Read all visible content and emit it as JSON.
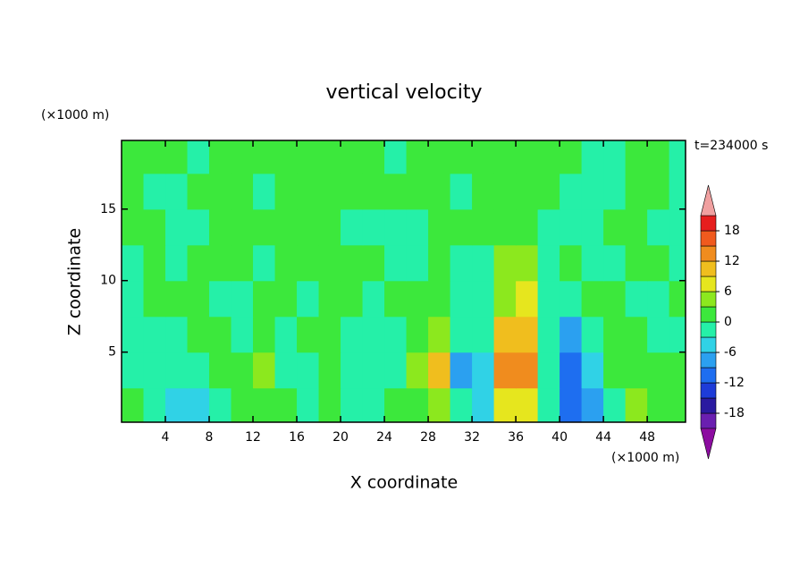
{
  "chart_data": {
    "type": "contour",
    "title": "vertical velocity",
    "y_unit": "(×1000 m)",
    "x_unit": "(×1000 m)",
    "time_label": "t=234000 s",
    "x_label": "X coordinate",
    "y_label": "Z coordinate",
    "xlim": [
      0,
      51.5
    ],
    "ylim": [
      0.1,
      19.8
    ],
    "xticks": [
      4,
      8,
      12,
      16,
      20,
      24,
      28,
      32,
      36,
      40,
      44,
      48
    ],
    "yticks": [
      5,
      10,
      15
    ],
    "xbins": [
      0,
      2,
      4,
      6,
      8,
      10,
      12,
      14,
      16,
      18,
      20,
      22,
      24,
      26,
      28,
      30,
      32,
      34,
      36,
      38,
      40,
      42,
      44,
      46,
      48,
      50,
      52
    ],
    "ybins": [
      0,
      2.5,
      5,
      7.5,
      10,
      12.5,
      15,
      17.5,
      20
    ],
    "z": [
      [
        1.5,
        -1.5,
        -4,
        -4,
        -1.5,
        1.5,
        1.5,
        1.5,
        -1.5,
        1.5,
        -1.5,
        -1.5,
        1.5,
        1.5,
        5,
        -1.5,
        -4,
        8,
        8,
        -1.5,
        -10,
        -8,
        -1.5,
        5,
        1.5,
        1.5
      ],
      [
        -1.5,
        -1.5,
        -1.5,
        -1.5,
        1.5,
        1.5,
        4,
        -1.5,
        -1.5,
        1.5,
        -1.5,
        -1.5,
        -1.5,
        4,
        10,
        -9,
        -6,
        13,
        14,
        -1.5,
        -12,
        -6,
        1.5,
        1.5,
        1.5,
        1.5
      ],
      [
        -1.5,
        -1.5,
        -1.5,
        1.5,
        1.5,
        -1.5,
        1.5,
        -1.5,
        1.5,
        1.5,
        -1.5,
        -1.5,
        -1.5,
        1.5,
        3,
        -1.5,
        -1.5,
        10,
        11,
        -1.5,
        -8,
        -1.5,
        1.5,
        1.5,
        -1.5,
        -1.5
      ],
      [
        -1.5,
        1.5,
        1.5,
        1.5,
        -1.5,
        -1.5,
        1.5,
        1.5,
        -1.5,
        1.5,
        1.5,
        -1.5,
        1.5,
        1.5,
        1.5,
        -1.5,
        -1.5,
        5,
        6,
        -1.5,
        -1.5,
        1.5,
        1.5,
        -1.5,
        -1.5,
        1.5
      ],
      [
        -1.5,
        1.5,
        -1.5,
        1.5,
        1.5,
        1.5,
        -1.5,
        1.5,
        1.5,
        1.5,
        1.5,
        1.5,
        -1.5,
        -1.5,
        1.5,
        -1.5,
        -1.5,
        3,
        3,
        -1.5,
        1.5,
        -1.5,
        -1.5,
        1.5,
        1.5,
        -1.5
      ],
      [
        1.5,
        1.5,
        -1.5,
        -1.5,
        1.5,
        1.5,
        1.5,
        1.5,
        1.5,
        1.5,
        -1.5,
        -1.5,
        -1.5,
        -1.5,
        1.5,
        1.5,
        1.5,
        1.5,
        1.5,
        -1.5,
        -1.5,
        -1.5,
        1.5,
        1.5,
        -1.5,
        -1.5
      ],
      [
        1.5,
        -1.5,
        -1.5,
        1.5,
        1.5,
        1.5,
        -1.5,
        1.5,
        1.5,
        1.5,
        1.5,
        1.5,
        1.5,
        1.5,
        1.5,
        -1.5,
        1.5,
        1.5,
        1.5,
        1.5,
        -1.5,
        -1.5,
        -1.5,
        1.5,
        1.5,
        -1.5
      ],
      [
        1.5,
        1.5,
        1.5,
        -1.5,
        1.5,
        1.5,
        1.5,
        1.5,
        1.5,
        1.5,
        1.5,
        1.5,
        -1.5,
        1.5,
        1.5,
        1.5,
        1.5,
        1.5,
        1.5,
        1.5,
        1.5,
        -1.5,
        -1.5,
        1.5,
        1.5,
        -1.5
      ]
    ],
    "colorbar": {
      "levels": [
        -21,
        -18,
        -15,
        -12,
        -9,
        -6,
        -3,
        0,
        3,
        6,
        9,
        12,
        15,
        18,
        21
      ],
      "ticks": [
        -18,
        -12,
        -6,
        0,
        6,
        12,
        18
      ],
      "colors": [
        "#6a1fb0",
        "#2a1aa0",
        "#1e3cd8",
        "#1e6ef0",
        "#2ba0f0",
        "#30d2e6",
        "#25f0a8",
        "#3ce83c",
        "#8ce81e",
        "#e6e61e",
        "#f0be1e",
        "#f08c1e",
        "#f05a1e",
        "#e61e1e"
      ],
      "under_color": "#8c0ca0",
      "over_color": "#f0a0a0"
    }
  }
}
